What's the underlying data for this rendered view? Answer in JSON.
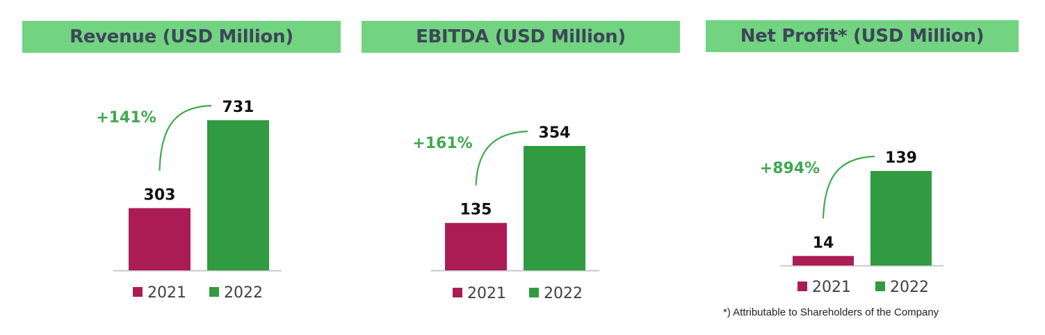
{
  "colors": {
    "header_bg": "#72d481",
    "header_text": "#3d4658",
    "bar_2021": "#ac1c54",
    "bar_2022": "#309b41",
    "growth": "#3fa84f",
    "axis": "#c8c8c8"
  },
  "chart_data": [
    {
      "type": "bar",
      "title": "Revenue (USD Million)",
      "categories": [
        "2021",
        "2022"
      ],
      "values": [
        303,
        731
      ],
      "growth_label": "+141%",
      "legend": [
        "2021",
        "2022"
      ]
    },
    {
      "type": "bar",
      "title": "EBITDA (USD Million)",
      "categories": [
        "2021",
        "2022"
      ],
      "values": [
        135,
        354
      ],
      "growth_label": "+161%",
      "legend": [
        "2021",
        "2022"
      ]
    },
    {
      "type": "bar",
      "title": "Net Profit* (USD Million)",
      "categories": [
        "2021",
        "2022"
      ],
      "values": [
        14,
        139
      ],
      "growth_label": "+894%",
      "legend": [
        "2021",
        "2022"
      ]
    }
  ],
  "footnote": "*) Attributable to Shareholders of the Company"
}
